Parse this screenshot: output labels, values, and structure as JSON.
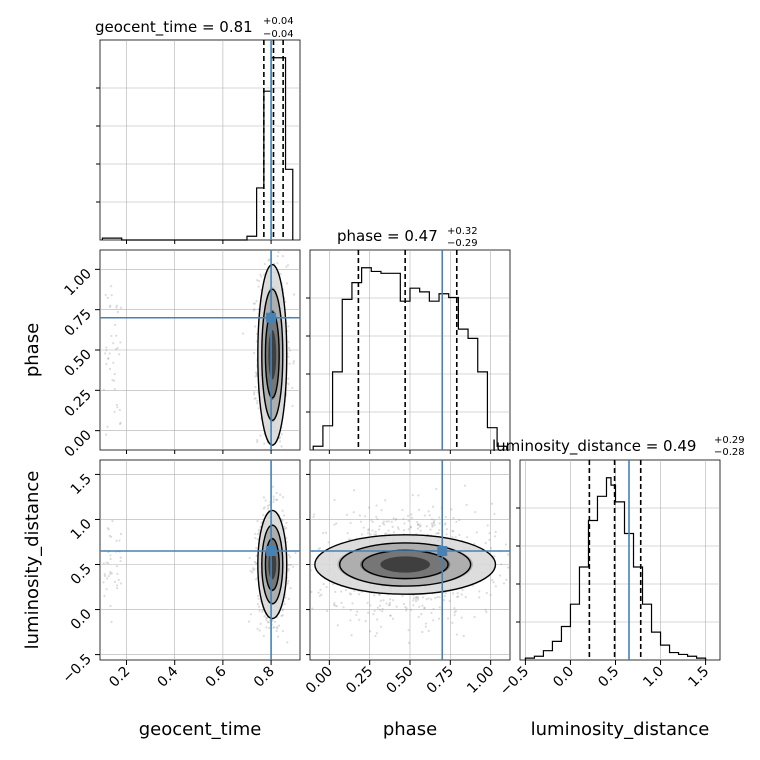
{
  "chart_data": {
    "type": "corner",
    "parameters": [
      "geocent_time",
      "phase",
      "luminosity_distance"
    ],
    "truths": {
      "geocent_time": 0.8,
      "phase": 0.7,
      "luminosity_distance": 0.65
    },
    "titles": [
      {
        "param": "geocent_time",
        "label": "geocent_time = 0.81",
        "plus": "+0.04",
        "minus": "−0.04"
      },
      {
        "param": "phase",
        "label": "phase = 0.47",
        "plus": "+0.32",
        "minus": "−0.29"
      },
      {
        "param": "luminosity_distance",
        "label": "luminosity_distance = 0.49",
        "plus": "+0.29",
        "minus": "−0.28"
      }
    ],
    "axis_labels": {
      "geocent_time": "geocent_time",
      "phase": "phase",
      "luminosity_distance": "luminosity_distance"
    },
    "ranges": {
      "geocent_time": [
        0.09,
        0.92
      ],
      "phase": [
        -0.12,
        1.12
      ],
      "luminosity_distance": [
        -0.56,
        1.66
      ]
    },
    "ticks": {
      "geocent_time": [
        "0.2",
        "0.4",
        "0.6",
        "0.8"
      ],
      "phase": [
        "0.00",
        "0.25",
        "0.50",
        "0.75",
        "1.00"
      ],
      "luminosity_distance": [
        "−0.5",
        "0.0",
        "0.5",
        "1.0",
        "1.5"
      ]
    },
    "histograms": {
      "geocent_time": {
        "edges": [
          0.1,
          0.14,
          0.18,
          0.22,
          0.26,
          0.3,
          0.34,
          0.38,
          0.42,
          0.46,
          0.5,
          0.54,
          0.58,
          0.62,
          0.66,
          0.7,
          0.74,
          0.77,
          0.8,
          0.83,
          0.86,
          0.89
        ],
        "counts": [
          0.01,
          0.01,
          0.0,
          0.0,
          0.0,
          0.0,
          0.0,
          0.0,
          0.0,
          0.0,
          0.0,
          0.0,
          0.0,
          0.0,
          0.0,
          0.02,
          0.28,
          0.8,
          0.98,
          0.98,
          0.38
        ],
        "quantiles": [
          0.77,
          0.81,
          0.85
        ]
      },
      "phase": {
        "edges": [
          -0.1,
          -0.04,
          0.02,
          0.08,
          0.14,
          0.2,
          0.26,
          0.32,
          0.38,
          0.44,
          0.5,
          0.56,
          0.62,
          0.68,
          0.74,
          0.8,
          0.86,
          0.92,
          0.98,
          1.04,
          1.1
        ],
        "counts": [
          0.02,
          0.13,
          0.42,
          0.81,
          0.9,
          0.98,
          0.96,
          0.95,
          0.95,
          0.8,
          0.87,
          0.85,
          0.8,
          0.84,
          0.82,
          0.65,
          0.6,
          0.42,
          0.12,
          0.02
        ],
        "quantiles": [
          0.18,
          0.47,
          0.79
        ]
      },
      "luminosity_distance": {
        "edges": [
          -0.5,
          -0.4,
          -0.3,
          -0.2,
          -0.1,
          0.0,
          0.1,
          0.2,
          0.3,
          0.4,
          0.45,
          0.5,
          0.6,
          0.7,
          0.8,
          0.9,
          1.0,
          1.1,
          1.2,
          1.3,
          1.4,
          1.5
        ],
        "counts": [
          0.01,
          0.02,
          0.05,
          0.1,
          0.18,
          0.3,
          0.5,
          0.75,
          0.88,
          0.98,
          0.94,
          0.85,
          0.68,
          0.5,
          0.3,
          0.15,
          0.08,
          0.04,
          0.03,
          0.02,
          0.01
        ],
        "quantiles": [
          0.21,
          0.49,
          0.78
        ]
      }
    },
    "pairs": [
      {
        "x": "geocent_time",
        "y": "phase"
      },
      {
        "x": "geocent_time",
        "y": "luminosity_distance"
      },
      {
        "x": "phase",
        "y": "luminosity_distance"
      }
    ],
    "colors": {
      "truth": "#4682b4",
      "histogram": "#000000",
      "quantile": "#000000",
      "contour": "#000000",
      "scatter": "#9a9a9a",
      "grid": "#b0b0b0"
    }
  }
}
